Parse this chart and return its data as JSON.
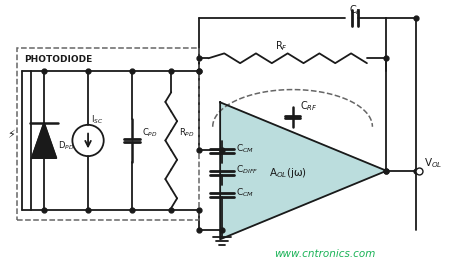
{
  "background_color": "#ffffff",
  "dashed_box_color": "#666666",
  "line_color": "#1a1a1a",
  "teal_fill": "#b0d8d8",
  "teal_fill_alpha": 0.85,
  "watermark_text": "www.cntronics.com",
  "watermark_color": "#00aa44",
  "photodiode_label": "PHOTODIODE",
  "labels": {
    "I_SC": "I$_{SC}$",
    "C_PD": "C$_{PD}$",
    "R_PD": "R$_{PD}$",
    "D_PD": "D$_{PD}$",
    "R_F": "R$_F$",
    "C_F": "C$_F$",
    "C_RF": "C$_{RF}$",
    "C_CM_top": "C$_{CM}$",
    "C_DIFF": "C$_{DIFF}$",
    "C_CM_bot": "C$_{CM}$",
    "A_OL": "A$_{OL}$(jω)",
    "V_OL": "V$_{OL}$"
  }
}
